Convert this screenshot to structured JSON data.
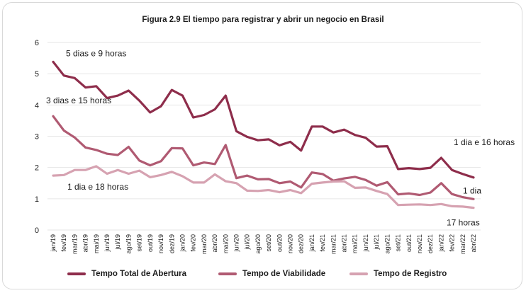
{
  "chart_data": {
    "type": "line",
    "title": "Figura 2.9 El tiempo para registrar y abrir un negocio en Brasil",
    "xlabel": "",
    "ylabel": "",
    "ylim": [
      0,
      6
    ],
    "yticks": [
      "0",
      "1",
      "2",
      "3",
      "4",
      "5",
      "6"
    ],
    "grid": true,
    "legend_position": "bottom",
    "x": [
      "jan/19",
      "fev/19",
      "mar/19",
      "abr/19",
      "mai/19",
      "jun/19",
      "jul/19",
      "ago/19",
      "set/19",
      "out/19",
      "nov/19",
      "dez/19",
      "jan/20",
      "fev/20",
      "mar/20",
      "abr/20",
      "mai/20",
      "jun/20",
      "jul/20",
      "ago/20",
      "set/20",
      "out/20",
      "nov/20",
      "dez/20",
      "jan/21",
      "fev/21",
      "mar/21",
      "abr/21",
      "mai/21",
      "jun/21",
      "jul/21",
      "ago/21",
      "set/21",
      "out/21",
      "nov/21",
      "dez/21",
      "jan/22",
      "fev/22",
      "mar/22",
      "abr/22"
    ],
    "series": [
      {
        "name": "Tempo Total de Abertura",
        "color": "#8e2d4b",
        "values": [
          5.38,
          4.94,
          4.86,
          4.56,
          4.6,
          4.22,
          4.3,
          4.46,
          4.14,
          3.76,
          3.96,
          4.48,
          4.3,
          3.6,
          3.68,
          3.86,
          4.3,
          3.16,
          2.98,
          2.87,
          2.9,
          2.71,
          2.82,
          2.54,
          3.31,
          3.31,
          3.12,
          3.21,
          3.04,
          2.95,
          2.67,
          2.68,
          1.95,
          1.98,
          1.95,
          1.99,
          2.31,
          1.92,
          1.79,
          1.68
        ]
      },
      {
        "name": "Tempo de Viabilidade",
        "color": "#b05a72",
        "values": [
          3.64,
          3.18,
          2.96,
          2.64,
          2.56,
          2.44,
          2.4,
          2.66,
          2.22,
          2.07,
          2.2,
          2.62,
          2.61,
          2.07,
          2.16,
          2.11,
          2.72,
          1.66,
          1.74,
          1.62,
          1.63,
          1.5,
          1.55,
          1.36,
          1.84,
          1.79,
          1.58,
          1.65,
          1.7,
          1.6,
          1.42,
          1.53,
          1.14,
          1.17,
          1.12,
          1.2,
          1.5,
          1.15,
          1.05,
          0.99
        ]
      },
      {
        "name": "Tempo de Registro",
        "color": "#d6a2b1",
        "values": [
          1.74,
          1.76,
          1.92,
          1.92,
          2.04,
          1.8,
          1.92,
          1.8,
          1.9,
          1.69,
          1.76,
          1.86,
          1.72,
          1.52,
          1.52,
          1.78,
          1.56,
          1.5,
          1.26,
          1.25,
          1.28,
          1.21,
          1.28,
          1.18,
          1.48,
          1.52,
          1.55,
          1.56,
          1.35,
          1.36,
          1.25,
          1.15,
          0.8,
          0.81,
          0.82,
          0.8,
          0.83,
          0.76,
          0.75,
          0.71
        ]
      }
    ],
    "annotations": [
      {
        "text": "5 dias e 9 horas",
        "series": 0,
        "index": 0
      },
      {
        "text": "3 dias e 15 horas",
        "series": 1,
        "index": 0
      },
      {
        "text": "1 dia e 18 horas",
        "series": 2,
        "index": 0
      },
      {
        "text": "1 dia e 16 horas",
        "series": 0,
        "index": 39
      },
      {
        "text": "1 dia",
        "series": 1,
        "index": 39
      },
      {
        "text": "17 horas",
        "series": 2,
        "index": 39
      }
    ]
  }
}
